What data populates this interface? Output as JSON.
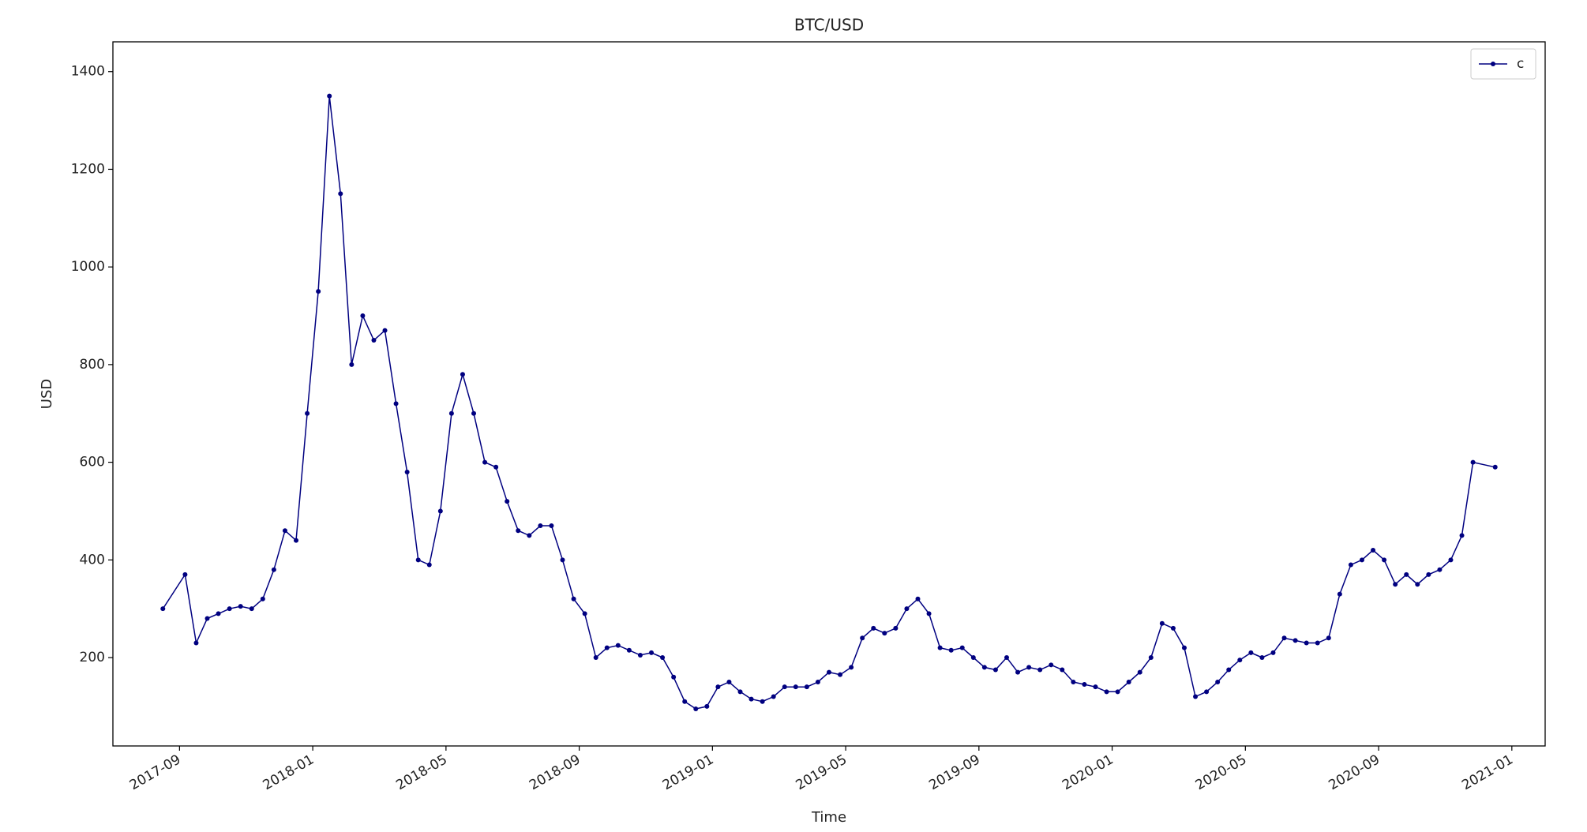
{
  "chart_data": {
    "type": "line",
    "title": "BTC/USD",
    "x_label": "Time",
    "y_label": "USD",
    "x": [
      "2017-08",
      "2017-09",
      "2017-09",
      "2017-09",
      "2017-10",
      "2017-10",
      "2017-10",
      "2017-11",
      "2017-11",
      "2017-11",
      "2017-12",
      "2017-12",
      "2017-12",
      "2018-01",
      "2018-01",
      "2018-01",
      "2018-02",
      "2018-02",
      "2018-02",
      "2018-03",
      "2018-03",
      "2018-03",
      "2018-04",
      "2018-04",
      "2018-04",
      "2018-05",
      "2018-05",
      "2018-05",
      "2018-06",
      "2018-06",
      "2018-06",
      "2018-07",
      "2018-07",
      "2018-07",
      "2018-08",
      "2018-08",
      "2018-08",
      "2018-09",
      "2018-09",
      "2018-09",
      "2018-10",
      "2018-10",
      "2018-10",
      "2018-11",
      "2018-11",
      "2018-11",
      "2018-12",
      "2018-12",
      "2018-12",
      "2019-01",
      "2019-01",
      "2019-01",
      "2019-02",
      "2019-02",
      "2019-02",
      "2019-03",
      "2019-03",
      "2019-03",
      "2019-04",
      "2019-04",
      "2019-04",
      "2019-05",
      "2019-05",
      "2019-05",
      "2019-06",
      "2019-06",
      "2019-06",
      "2019-07",
      "2019-07",
      "2019-07",
      "2019-08",
      "2019-08",
      "2019-08",
      "2019-09",
      "2019-09",
      "2019-09",
      "2019-10",
      "2019-10",
      "2019-10",
      "2019-11",
      "2019-11",
      "2019-11",
      "2019-12",
      "2019-12",
      "2019-12",
      "2020-01",
      "2020-01",
      "2020-01",
      "2020-02",
      "2020-02",
      "2020-02",
      "2020-03",
      "2020-03",
      "2020-03",
      "2020-04",
      "2020-04",
      "2020-04",
      "2020-05",
      "2020-05",
      "2020-05",
      "2020-06",
      "2020-06",
      "2020-06",
      "2020-07",
      "2020-07",
      "2020-07",
      "2020-08",
      "2020-08",
      "2020-08",
      "2020-09",
      "2020-09",
      "2020-09",
      "2020-10",
      "2020-10",
      "2020-10",
      "2020-11",
      "2020-11",
      "2020-11",
      "2020-12"
    ],
    "series": [
      {
        "name": "c",
        "color": "#000080",
        "values": [
          300,
          370,
          230,
          280,
          290,
          300,
          305,
          300,
          320,
          380,
          460,
          440,
          700,
          950,
          1350,
          1150,
          800,
          900,
          850,
          870,
          720,
          580,
          400,
          390,
          500,
          700,
          780,
          700,
          600,
          590,
          520,
          460,
          450,
          470,
          470,
          400,
          320,
          290,
          200,
          220,
          225,
          215,
          205,
          210,
          200,
          160,
          110,
          95,
          100,
          140,
          150,
          130,
          115,
          110,
          120,
          140,
          140,
          140,
          150,
          170,
          165,
          180,
          240,
          260,
          250,
          260,
          300,
          320,
          290,
          220,
          215,
          220,
          200,
          180,
          175,
          200,
          170,
          180,
          175,
          185,
          175,
          150,
          145,
          140,
          130,
          130,
          150,
          170,
          200,
          270,
          260,
          220,
          120,
          130,
          150,
          175,
          195,
          210,
          200,
          210,
          240,
          235,
          230,
          230,
          240,
          330,
          390,
          400,
          420,
          400,
          350,
          370,
          350,
          370,
          380,
          400,
          450,
          600,
          590
        ]
      }
    ],
    "xlim": [
      "2017-07",
      "2021-02"
    ],
    "xticks": [
      "2017-09",
      "2018-01",
      "2018-05",
      "2018-09",
      "2019-01",
      "2019-05",
      "2019-09",
      "2020-01",
      "2020-05",
      "2020-09",
      "2021-01"
    ],
    "ylim": [
      19,
      1461
    ],
    "yticks": [
      200,
      400,
      600,
      800,
      1000,
      1200,
      1400
    ],
    "grid": false,
    "legend": "upper right"
  }
}
